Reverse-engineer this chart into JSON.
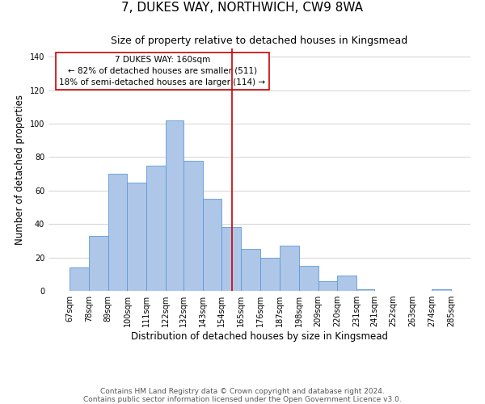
{
  "title": "7, DUKES WAY, NORTHWICH, CW9 8WA",
  "subtitle": "Size of property relative to detached houses in Kingsmead",
  "xlabel": "Distribution of detached houses by size in Kingsmead",
  "ylabel": "Number of detached properties",
  "footer_line1": "Contains HM Land Registry data © Crown copyright and database right 2024.",
  "footer_line2": "Contains public sector information licensed under the Open Government Licence v3.0.",
  "bar_left_edges": [
    67,
    78,
    89,
    100,
    111,
    122,
    132,
    143,
    154,
    165,
    176,
    187,
    198,
    209,
    220,
    231,
    241,
    252,
    263,
    274
  ],
  "bar_heights": [
    14,
    33,
    70,
    65,
    75,
    102,
    78,
    55,
    38,
    25,
    20,
    27,
    15,
    6,
    9,
    1,
    0,
    0,
    0,
    1
  ],
  "bar_widths": [
    11,
    11,
    11,
    11,
    11,
    10,
    11,
    11,
    11,
    11,
    11,
    11,
    11,
    11,
    11,
    10,
    11,
    11,
    11,
    11
  ],
  "bar_color": "#aec6e8",
  "bar_edgecolor": "#5b9bd5",
  "reference_line_x": 160,
  "reference_line_color": "#cc0000",
  "annotation_title": "7 DUKES WAY: 160sqm",
  "annotation_line1": "← 82% of detached houses are smaller (511)",
  "annotation_line2": "18% of semi-detached houses are larger (114) →",
  "annotation_box_edgecolor": "#cc0000",
  "annotation_box_facecolor": "#ffffff",
  "xlim": [
    55,
    296
  ],
  "ylim": [
    0,
    145
  ],
  "xtick_labels": [
    "67sqm",
    "78sqm",
    "89sqm",
    "100sqm",
    "111sqm",
    "122sqm",
    "132sqm",
    "143sqm",
    "154sqm",
    "165sqm",
    "176sqm",
    "187sqm",
    "198sqm",
    "209sqm",
    "220sqm",
    "231sqm",
    "241sqm",
    "252sqm",
    "263sqm",
    "274sqm",
    "285sqm"
  ],
  "xtick_positions": [
    67,
    78,
    89,
    100,
    111,
    122,
    132,
    143,
    154,
    165,
    176,
    187,
    198,
    209,
    220,
    231,
    241,
    252,
    263,
    274,
    285
  ],
  "ytick_positions": [
    0,
    20,
    40,
    60,
    80,
    100,
    120,
    140
  ],
  "grid_color": "#cccccc",
  "background_color": "#ffffff",
  "title_fontsize": 11,
  "subtitle_fontsize": 9,
  "axis_label_fontsize": 8.5,
  "tick_fontsize": 7,
  "annotation_fontsize": 7.5,
  "footer_fontsize": 6.5
}
